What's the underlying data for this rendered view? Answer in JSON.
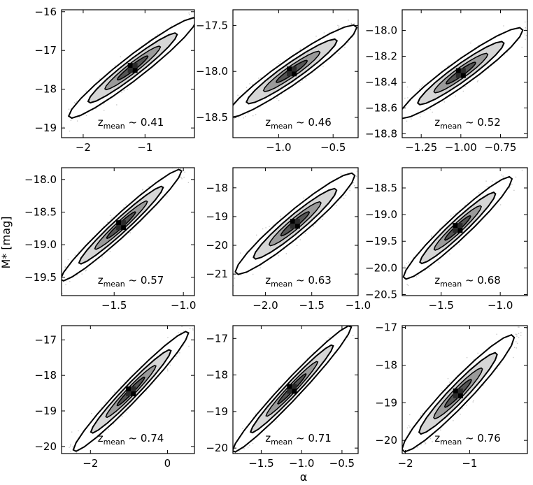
{
  "figure": {
    "xlabel": "α",
    "ylabel": "M* [mag]"
  },
  "chart_data": [
    {
      "type": "scatter",
      "annotation_main": "z",
      "annotation_sub": "mean",
      "annotation_value": " ~ 0.41",
      "xlim": [
        -2.35,
        -0.2
      ],
      "ylim": [
        -19.25,
        -15.95
      ],
      "xticks": [
        -2,
        -1
      ],
      "xtick_labels": [
        "−2",
        "−1"
      ],
      "yticks": [
        -19,
        -18,
        -17,
        -16
      ],
      "ytick_labels": [
        "−19",
        "−18",
        "−17",
        "−16"
      ],
      "center": [
        -1.2,
        -17.45
      ],
      "slope": 1.2,
      "spread": [
        0.45,
        0.16
      ]
    },
    {
      "type": "scatter",
      "annotation_main": "z",
      "annotation_sub": "mean",
      "annotation_value": " ~ 0.46",
      "xlim": [
        -1.42,
        -0.27
      ],
      "ylim": [
        -18.72,
        -17.33
      ],
      "xticks": [
        -1.0,
        -0.5
      ],
      "xtick_labels": [
        "−1.0",
        "−0.5"
      ],
      "yticks": [
        -18.5,
        -18.0,
        -17.5
      ],
      "ytick_labels": [
        "−18.5",
        "−18.0",
        "−17.5"
      ],
      "center": [
        -0.88,
        -18.0
      ],
      "slope": 0.8,
      "spread": [
        0.26,
        0.07
      ]
    },
    {
      "type": "scatter",
      "annotation_main": "z",
      "annotation_sub": "mean",
      "annotation_value": " ~ 0.52",
      "xlim": [
        -1.37,
        -0.58
      ],
      "ylim": [
        -18.83,
        -17.84
      ],
      "xticks": [
        -1.25,
        -1.0,
        -0.75
      ],
      "xtick_labels": [
        "−1.25",
        "−1.00",
        "−0.75"
      ],
      "yticks": [
        -18.8,
        -18.6,
        -18.4,
        -18.2,
        -18.0
      ],
      "ytick_labels": [
        "−18.8",
        "−18.6",
        "−18.4",
        "−18.2",
        "−18.0"
      ],
      "center": [
        -1.0,
        -18.33
      ],
      "slope": 0.85,
      "spread": [
        0.17,
        0.05
      ]
    },
    {
      "type": "scatter",
      "annotation_main": "z",
      "annotation_sub": "mean",
      "annotation_value": " ~ 0.57",
      "xlim": [
        -1.88,
        -0.92
      ],
      "ylim": [
        -19.78,
        -17.82
      ],
      "xticks": [
        -1.5,
        -1.0
      ],
      "xtick_labels": [
        "−1.5",
        "−1.0"
      ],
      "yticks": [
        -19.5,
        -19.0,
        -18.5,
        -18.0
      ],
      "ytick_labels": [
        "−19.5",
        "−19.0",
        "−18.5",
        "−18.0"
      ],
      "center": [
        -1.45,
        -18.7
      ],
      "slope": 1.9,
      "spread": [
        0.19,
        0.09
      ]
    },
    {
      "type": "scatter",
      "annotation_main": "z",
      "annotation_sub": "mean",
      "annotation_value": " ~ 0.63",
      "xlim": [
        -2.35,
        -1.0
      ],
      "ylim": [
        -21.75,
        -17.3
      ],
      "xticks": [
        -2.0,
        -1.5,
        -1.0
      ],
      "xtick_labels": [
        "−2.0",
        "−1.5",
        "−1.0"
      ],
      "yticks": [
        -21,
        -20,
        -19,
        -18
      ],
      "ytick_labels": [
        "−21",
        "−20",
        "−19",
        "−18"
      ],
      "center": [
        -1.68,
        -19.25
      ],
      "slope": 2.6,
      "spread": [
        0.28,
        0.24
      ]
    },
    {
      "type": "scatter",
      "annotation_main": "z",
      "annotation_sub": "mean",
      "annotation_value": " ~ 0.68",
      "xlim": [
        -1.83,
        -0.77
      ],
      "ylim": [
        -20.52,
        -18.12
      ],
      "xticks": [
        -1.5,
        -1.0
      ],
      "xtick_labels": [
        "−1.5",
        "−1.0"
      ],
      "yticks": [
        -20.5,
        -20.0,
        -19.5,
        -19.0,
        -18.5
      ],
      "ytick_labels": [
        "−20.5",
        "−20.0",
        "−19.5",
        "−19.0",
        "−18.5"
      ],
      "center": [
        -1.36,
        -19.25
      ],
      "slope": 2.0,
      "spread": [
        0.2,
        0.12
      ]
    },
    {
      "type": "scatter",
      "annotation_main": "z",
      "annotation_sub": "mean",
      "annotation_value": " ~ 0.74",
      "xlim": [
        -2.75,
        0.7
      ],
      "ylim": [
        -20.2,
        -16.6
      ],
      "xticks": [
        -2,
        0
      ],
      "xtick_labels": [
        "−2",
        "0"
      ],
      "yticks": [
        -20,
        -19,
        -18,
        -17
      ],
      "ytick_labels": [
        "−20",
        "−19",
        "−18",
        "−17"
      ],
      "center": [
        -0.95,
        -18.45
      ],
      "slope": 1.1,
      "spread": [
        0.65,
        0.17
      ]
    },
    {
      "type": "scatter",
      "annotation_main": "z",
      "annotation_sub": "mean",
      "annotation_value": " ~ 0.71",
      "xlim": [
        -1.85,
        -0.3
      ],
      "ylim": [
        -20.15,
        -16.65
      ],
      "xticks": [
        -1.5,
        -1.0,
        -0.5
      ],
      "xtick_labels": [
        "−1.5",
        "−1.0",
        "−0.5"
      ],
      "yticks": [
        -20,
        -19,
        -18,
        -17
      ],
      "ytick_labels": [
        "−20",
        "−19",
        "−18",
        "−17"
      ],
      "center": [
        -1.12,
        -18.38
      ],
      "slope": 2.3,
      "spread": [
        0.32,
        0.16
      ]
    },
    {
      "type": "scatter",
      "annotation_main": "z",
      "annotation_sub": "mean",
      "annotation_value": " ~ 0.76",
      "xlim": [
        -2.05,
        -0.1
      ],
      "ylim": [
        -20.35,
        -16.95
      ],
      "xticks": [
        -2,
        -1
      ],
      "xtick_labels": [
        "−2",
        "−1"
      ],
      "yticks": [
        -20,
        -19,
        -18,
        -17
      ],
      "ytick_labels": [
        "−20",
        "−19",
        "−18",
        "−17"
      ],
      "center": [
        -1.18,
        -18.75
      ],
      "slope": 1.7,
      "spread": [
        0.38,
        0.2
      ]
    }
  ]
}
